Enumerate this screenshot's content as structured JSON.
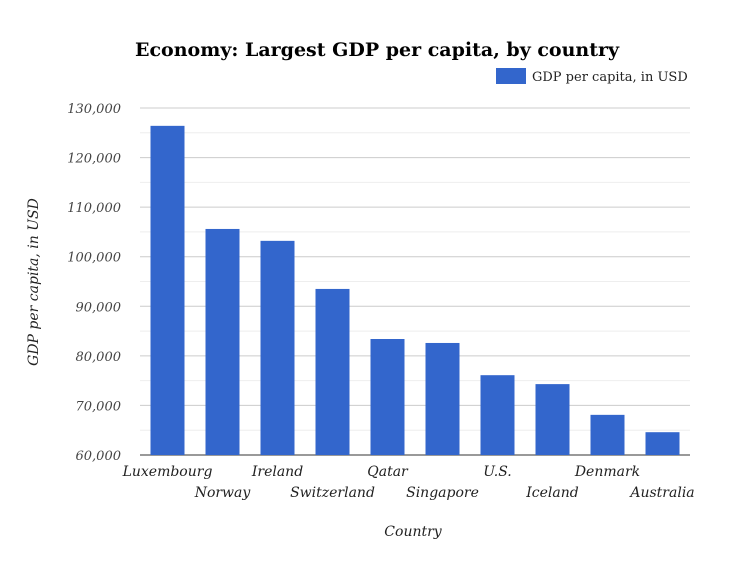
{
  "chart_data": {
    "type": "bar",
    "title": "Economy: Largest GDP per capita, by country",
    "xlabel": "Country",
    "ylabel": "GDP per capita, in USD",
    "ylim": [
      60000,
      130000
    ],
    "yticks": [
      "60,000",
      "70,000",
      "80,000",
      "90,000",
      "100,000",
      "110,000",
      "120,000",
      "130,000"
    ],
    "grid": true,
    "legend_placement": "top-right",
    "categories": [
      "Luxembourg",
      "Norway",
      "Ireland",
      "Switzerland",
      "Qatar",
      "Singapore",
      "U.S.",
      "Iceland",
      "Denmark",
      "Australia"
    ],
    "series": [
      {
        "name": "GDP per capita, in USD",
        "color": "#3366cc",
        "values": [
          126400,
          105600,
          103200,
          93500,
          83400,
          82600,
          76100,
          74300,
          68100,
          64600
        ]
      }
    ]
  }
}
